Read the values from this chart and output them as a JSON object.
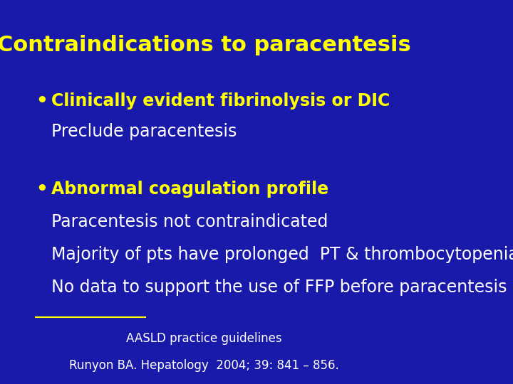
{
  "background_color": "#1a1aaa",
  "title": "Contraindications to paracentesis",
  "title_color": "#ffff00",
  "title_fontsize": 22,
  "bullet1_header": "Clinically evident fibrinolysis or DIC",
  "bullet1_sub": [
    "Preclude paracentesis"
  ],
  "bullet2_header": "Abnormal coagulation profile",
  "bullet2_sub": [
    "Paracentesis not contraindicated",
    "Majority of pts have prolonged  PT & thrombocytopenia",
    "No data to support the use of FFP before paracentesis"
  ],
  "bullet_color": "#ffff00",
  "subtext_color": "#ffffff",
  "footer_line1": "AASLD practice guidelines",
  "footer_line2": "Runyon BA. Hepatology  2004; 39: 841 – 856.",
  "footer_color": "#ffffff",
  "footer_fontsize": 12,
  "separator_color": "#ffff00",
  "bullet_fontsize": 17,
  "subtext_fontsize": 17
}
